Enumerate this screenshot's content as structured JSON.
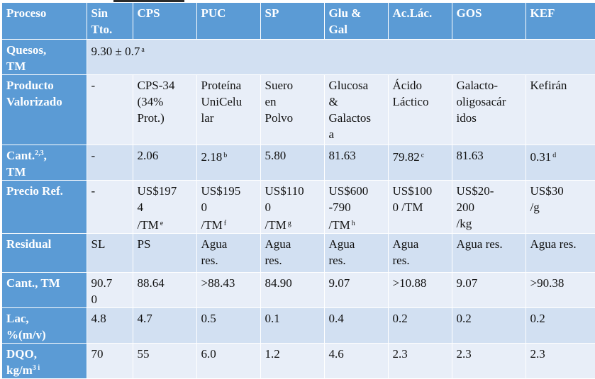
{
  "table": {
    "header": [
      "Proceso",
      "Sin\nTto.",
      "CPS",
      "PUC",
      "SP",
      "Glu &\nGal",
      "Ac.Lác.",
      "GOS",
      "KEF"
    ],
    "quesos": {
      "label": "Quesos,\nTM",
      "value": "9.30 ± 0.7",
      "note": "a"
    },
    "rows": [
      {
        "label": "Producto\nValorizado",
        "cells": [
          {
            "v": "-"
          },
          {
            "v": "CPS-34\n(34%\nProt.)"
          },
          {
            "v": "Proteína\nUniCelu\nlar"
          },
          {
            "v": "Suero\nen\nPolvo"
          },
          {
            "v": "Glucosa\n&\nGalactos\na"
          },
          {
            "v": "Ácido\nLáctico"
          },
          {
            "v": "Galacto-\noligosacár\nidos"
          },
          {
            "v": "Kefirán"
          }
        ]
      },
      {
        "label": "Cant.",
        "label_sup": "2,3",
        "label_tail": ",\nTM",
        "cells": [
          {
            "v": "-"
          },
          {
            "v": "2.06"
          },
          {
            "v": "2.18",
            "n": "b"
          },
          {
            "v": "5.80"
          },
          {
            "v": "81.63"
          },
          {
            "v": "79.82",
            "n": "c"
          },
          {
            "v": "81.63"
          },
          {
            "v": "0.31",
            "n": "d"
          }
        ]
      },
      {
        "label": "Precio Ref.",
        "cells": [
          {
            "v": "-"
          },
          {
            "v": "US$197\n4\n/TM",
            "n": "e"
          },
          {
            "v": "US$195\n0\n/TM",
            "n": "f"
          },
          {
            "v": "US$110\n0\n/TM",
            "n": "g"
          },
          {
            "v": "US$600\n-790\n/TM",
            "n": "h"
          },
          {
            "v": "US$100\n0 /TM"
          },
          {
            "v": "US$20-\n200\n/kg"
          },
          {
            "v": "US$30\n/g"
          }
        ]
      },
      {
        "label": "Residual",
        "cells": [
          {
            "v": "SL"
          },
          {
            "v": "PS"
          },
          {
            "v": "Agua\nres."
          },
          {
            "v": "Agua\nres."
          },
          {
            "v": "Agua\nres."
          },
          {
            "v": "Agua\nres."
          },
          {
            "v": "Agua res."
          },
          {
            "v": "Agua res."
          }
        ]
      },
      {
        "label": "Cant., TM",
        "cells": [
          {
            "v": "90.7\n0"
          },
          {
            "v": "88.64"
          },
          {
            "v": ">88.43"
          },
          {
            "v": "84.90"
          },
          {
            "v": "9.07"
          },
          {
            "v": ">10.88"
          },
          {
            "v": "9.07"
          },
          {
            "v": ">90.38"
          }
        ]
      },
      {
        "label": "Lac,\n%(m/v)",
        "cells": [
          {
            "v": "4.8"
          },
          {
            "v": "4.7"
          },
          {
            "v": "0.5"
          },
          {
            "v": "0.1"
          },
          {
            "v": "0.4"
          },
          {
            "v": "0.2"
          },
          {
            "v": "0.2"
          },
          {
            "v": "0.2"
          }
        ]
      },
      {
        "label": "DQO,\nkg/m",
        "label_sup": "3 i",
        "cells": [
          {
            "v": "70"
          },
          {
            "v": "55"
          },
          {
            "v": "6.0"
          },
          {
            "v": "1.2"
          },
          {
            "v": "4.6"
          },
          {
            "v": "2.3"
          },
          {
            "v": "2.3"
          },
          {
            "v": "2.3"
          }
        ]
      }
    ]
  },
  "colors": {
    "header": "#5b9bd5",
    "band_dark": "#d2e0f2",
    "band_light": "#e8eef8",
    "header_text": "#ffffff"
  }
}
